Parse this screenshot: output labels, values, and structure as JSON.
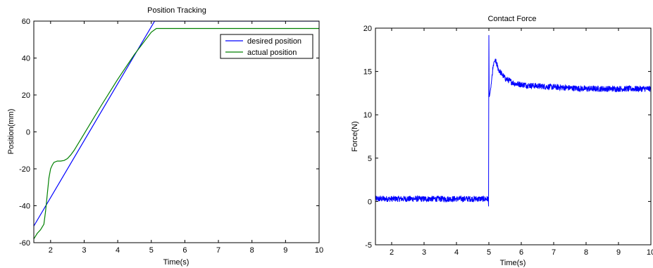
{
  "chart_data": [
    {
      "type": "line",
      "title": "Position Tracking",
      "xlabel": "Time(s)",
      "ylabel": "Position(mm)",
      "xlim": [
        1.5,
        10
      ],
      "ylim": [
        -60,
        60
      ],
      "xticks": [
        2,
        3,
        4,
        5,
        6,
        7,
        8,
        9,
        10
      ],
      "yticks": [
        -60,
        -40,
        -20,
        0,
        20,
        40,
        60
      ],
      "grid": false,
      "legend": "top-right",
      "series": [
        {
          "name": "desired position",
          "color": "#0000ff",
          "x": [
            1.5,
            5.1,
            10
          ],
          "y": [
            -51,
            60,
            60
          ]
        },
        {
          "name": "actual position",
          "color": "#008000",
          "x": [
            1.5,
            1.6,
            1.7,
            1.8,
            1.85,
            1.9,
            1.95,
            2.0,
            2.05,
            2.1,
            2.2,
            2.3,
            2.4,
            2.5,
            2.6,
            2.7,
            3.0,
            3.5,
            4.0,
            4.5,
            5.0,
            5.15,
            10
          ],
          "y": [
            -58,
            -55,
            -53,
            -50,
            -43,
            -34,
            -25,
            -20,
            -18,
            -16.5,
            -15.8,
            -15.8,
            -15.5,
            -14.5,
            -12.5,
            -10,
            -1,
            14,
            28.5,
            42,
            54,
            56,
            56
          ]
        }
      ]
    },
    {
      "type": "line",
      "title": "Contact Force",
      "xlabel": "Time(s)",
      "ylabel": "Force(N)",
      "xlim": [
        1.5,
        10
      ],
      "ylim": [
        -5,
        20
      ],
      "xticks": [
        2,
        3,
        4,
        5,
        6,
        7,
        8,
        9,
        10
      ],
      "yticks": [
        -5,
        0,
        5,
        10,
        15,
        20
      ],
      "grid": false,
      "series": [
        {
          "color": "#0000ff",
          "noise": 0.35,
          "x": [
            1.5,
            4.98,
            4.99,
            5.0,
            5.01,
            5.05,
            5.1,
            5.15,
            5.2,
            5.3,
            5.5,
            5.8,
            6.2,
            7.0,
            8.0,
            9.0,
            10
          ],
          "y": [
            0.3,
            0.3,
            -0.5,
            19.2,
            12.0,
            12.8,
            14.5,
            16.0,
            16.3,
            15.2,
            14.2,
            13.6,
            13.4,
            13.2,
            13.0,
            13.0,
            13.0
          ]
        }
      ]
    }
  ]
}
